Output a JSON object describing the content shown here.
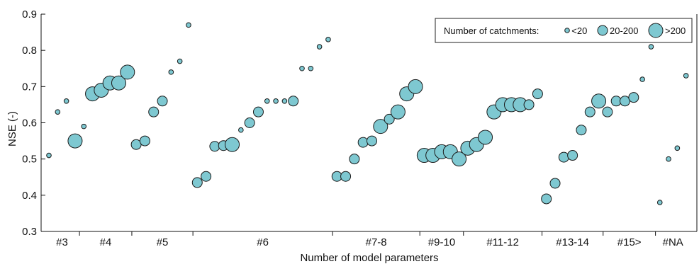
{
  "chart_data": {
    "type": "scatter",
    "ylabel": "NSE (-)",
    "xlabel": "Number of model parameters",
    "ylim": [
      0.3,
      0.9
    ],
    "yticks": [
      0.3,
      0.4,
      0.5,
      0.6,
      0.7,
      0.8,
      0.9
    ],
    "grid": false,
    "legend": {
      "title": "Number of catchments:",
      "placement": "top-right",
      "entries": [
        {
          "label": "<20",
          "size": "small"
        },
        {
          "label": "20-200",
          "size": "medium"
        },
        {
          "label": ">200",
          "size": "large"
        }
      ]
    },
    "colors": {
      "marker_fill": "#7ec8d1",
      "marker_stroke": "#1a1a1a",
      "axis": "#111111"
    },
    "groups": [
      "#3",
      "#4",
      "#5",
      "#6",
      "#7-8",
      "#9-10",
      "#11-12",
      "#13-14",
      "#15>",
      "#NA"
    ],
    "points": [
      {
        "group": "#3",
        "nse": 0.51,
        "size": "small"
      },
      {
        "group": "#3",
        "nse": 0.63,
        "size": "small"
      },
      {
        "group": "#3",
        "nse": 0.66,
        "size": "small"
      },
      {
        "group": "#3",
        "nse": 0.55,
        "size": "large"
      },
      {
        "group": "#4",
        "nse": 0.59,
        "size": "small"
      },
      {
        "group": "#4",
        "nse": 0.68,
        "size": "large"
      },
      {
        "group": "#4",
        "nse": 0.69,
        "size": "large"
      },
      {
        "group": "#4",
        "nse": 0.71,
        "size": "large"
      },
      {
        "group": "#4",
        "nse": 0.71,
        "size": "large"
      },
      {
        "group": "#4",
        "nse": 0.74,
        "size": "large"
      },
      {
        "group": "#5",
        "nse": 0.54,
        "size": "medium"
      },
      {
        "group": "#5",
        "nse": 0.55,
        "size": "medium"
      },
      {
        "group": "#5",
        "nse": 0.63,
        "size": "medium"
      },
      {
        "group": "#5",
        "nse": 0.66,
        "size": "medium"
      },
      {
        "group": "#5",
        "nse": 0.74,
        "size": "small"
      },
      {
        "group": "#5",
        "nse": 0.77,
        "size": "small"
      },
      {
        "group": "#5",
        "nse": 0.87,
        "size": "small"
      },
      {
        "group": "#6",
        "nse": 0.435,
        "size": "medium"
      },
      {
        "group": "#6",
        "nse": 0.452,
        "size": "medium"
      },
      {
        "group": "#6",
        "nse": 0.535,
        "size": "medium"
      },
      {
        "group": "#6",
        "nse": 0.537,
        "size": "medium"
      },
      {
        "group": "#6",
        "nse": 0.54,
        "size": "large"
      },
      {
        "group": "#6",
        "nse": 0.58,
        "size": "small"
      },
      {
        "group": "#6",
        "nse": 0.6,
        "size": "medium"
      },
      {
        "group": "#6",
        "nse": 0.63,
        "size": "medium"
      },
      {
        "group": "#6",
        "nse": 0.66,
        "size": "small"
      },
      {
        "group": "#6",
        "nse": 0.66,
        "size": "small"
      },
      {
        "group": "#6",
        "nse": 0.66,
        "size": "small"
      },
      {
        "group": "#6",
        "nse": 0.66,
        "size": "medium"
      },
      {
        "group": "#6",
        "nse": 0.75,
        "size": "small"
      },
      {
        "group": "#6",
        "nse": 0.75,
        "size": "small"
      },
      {
        "group": "#6",
        "nse": 0.81,
        "size": "small"
      },
      {
        "group": "#6",
        "nse": 0.83,
        "size": "small"
      },
      {
        "group": "#7-8",
        "nse": 0.452,
        "size": "medium"
      },
      {
        "group": "#7-8",
        "nse": 0.452,
        "size": "medium"
      },
      {
        "group": "#7-8",
        "nse": 0.5,
        "size": "medium"
      },
      {
        "group": "#7-8",
        "nse": 0.546,
        "size": "medium"
      },
      {
        "group": "#7-8",
        "nse": 0.55,
        "size": "medium"
      },
      {
        "group": "#7-8",
        "nse": 0.59,
        "size": "large"
      },
      {
        "group": "#7-8",
        "nse": 0.61,
        "size": "medium"
      },
      {
        "group": "#7-8",
        "nse": 0.63,
        "size": "large"
      },
      {
        "group": "#7-8",
        "nse": 0.68,
        "size": "large"
      },
      {
        "group": "#7-8",
        "nse": 0.7,
        "size": "large"
      },
      {
        "group": "#9-10",
        "nse": 0.51,
        "size": "large"
      },
      {
        "group": "#9-10",
        "nse": 0.51,
        "size": "large"
      },
      {
        "group": "#9-10",
        "nse": 0.52,
        "size": "large"
      },
      {
        "group": "#9-10",
        "nse": 0.52,
        "size": "large"
      },
      {
        "group": "#9-10",
        "nse": 0.5,
        "size": "large"
      },
      {
        "group": "#11-12",
        "nse": 0.53,
        "size": "large"
      },
      {
        "group": "#11-12",
        "nse": 0.54,
        "size": "large"
      },
      {
        "group": "#11-12",
        "nse": 0.56,
        "size": "large"
      },
      {
        "group": "#11-12",
        "nse": 0.63,
        "size": "large"
      },
      {
        "group": "#11-12",
        "nse": 0.65,
        "size": "large"
      },
      {
        "group": "#11-12",
        "nse": 0.65,
        "size": "large"
      },
      {
        "group": "#11-12",
        "nse": 0.65,
        "size": "large"
      },
      {
        "group": "#11-12",
        "nse": 0.65,
        "size": "medium"
      },
      {
        "group": "#11-12",
        "nse": 0.68,
        "size": "medium"
      },
      {
        "group": "#13-14",
        "nse": 0.39,
        "size": "medium"
      },
      {
        "group": "#13-14",
        "nse": 0.433,
        "size": "medium"
      },
      {
        "group": "#13-14",
        "nse": 0.505,
        "size": "medium"
      },
      {
        "group": "#13-14",
        "nse": 0.51,
        "size": "medium"
      },
      {
        "group": "#13-14",
        "nse": 0.58,
        "size": "medium"
      },
      {
        "group": "#13-14",
        "nse": 0.63,
        "size": "medium"
      },
      {
        "group": "#13-14",
        "nse": 0.66,
        "size": "large"
      },
      {
        "group": "#15>",
        "nse": 0.63,
        "size": "medium"
      },
      {
        "group": "#15>",
        "nse": 0.66,
        "size": "medium"
      },
      {
        "group": "#15>",
        "nse": 0.66,
        "size": "medium"
      },
      {
        "group": "#15>",
        "nse": 0.67,
        "size": "medium"
      },
      {
        "group": "#15>",
        "nse": 0.72,
        "size": "small"
      },
      {
        "group": "#15>",
        "nse": 0.81,
        "size": "small"
      },
      {
        "group": "#NA",
        "nse": 0.38,
        "size": "small"
      },
      {
        "group": "#NA",
        "nse": 0.5,
        "size": "small"
      },
      {
        "group": "#NA",
        "nse": 0.53,
        "size": "small"
      },
      {
        "group": "#NA",
        "nse": 0.73,
        "size": "small"
      }
    ]
  }
}
